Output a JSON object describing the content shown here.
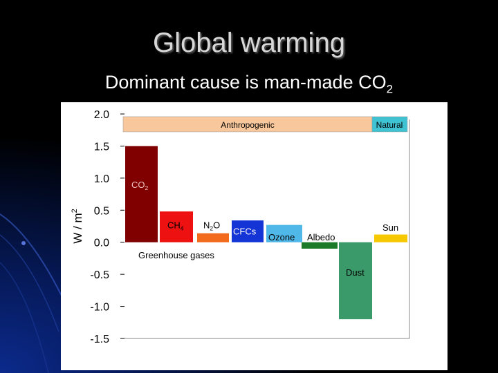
{
  "slide": {
    "title": "Global warming",
    "subtitle_text": "Dominant cause is man-made CO",
    "subtitle_sub": "2"
  },
  "colors": {
    "background": "#000000",
    "panel": "#ffffff",
    "anthropogenic_band": "#f8c89c",
    "natural_band": "#3fc2d2"
  },
  "chart_data": {
    "type": "bar",
    "ylabel": "W / m2",
    "ylim": [
      -1.5,
      2.0
    ],
    "yticks": [
      "2.0",
      "1.5",
      "1.0",
      "0.5",
      "0.0",
      "-0.5",
      "-1.0",
      "-1.5"
    ],
    "ytick_values": [
      2.0,
      1.5,
      1.0,
      0.5,
      0.0,
      -0.5,
      -1.0,
      -1.5
    ],
    "categories": [
      "CO2",
      "CH4",
      "N2O",
      "CFCs",
      "Ozone",
      "Albedo",
      "Dust",
      "Sun"
    ],
    "values": [
      1.5,
      0.48,
      0.14,
      0.34,
      0.27,
      -0.1,
      -1.2,
      0.12
    ],
    "bar_colors": [
      "#800000",
      "#ee1111",
      "#f26a1b",
      "#1434d6",
      "#4fb8e8",
      "#1a7a2a",
      "#3a9a6a",
      "#f5c800"
    ],
    "bar_labels": [
      {
        "base": "CO",
        "sub": "2"
      },
      {
        "base": "CH",
        "sub": "4"
      },
      {
        "base": "N",
        "sub": "2",
        "tail": "O"
      },
      {
        "base": "CFCs"
      },
      {
        "base": "Ozone"
      },
      {
        "base": "Albedo"
      },
      {
        "base": "Dust"
      },
      {
        "base": "Sun"
      }
    ],
    "bands": [
      {
        "label": "Anthropogenic",
        "value": 1.85
      },
      {
        "label": "Natural",
        "value": 1.85
      }
    ],
    "annotations": [
      {
        "text": "Greenhouse gases"
      }
    ]
  }
}
